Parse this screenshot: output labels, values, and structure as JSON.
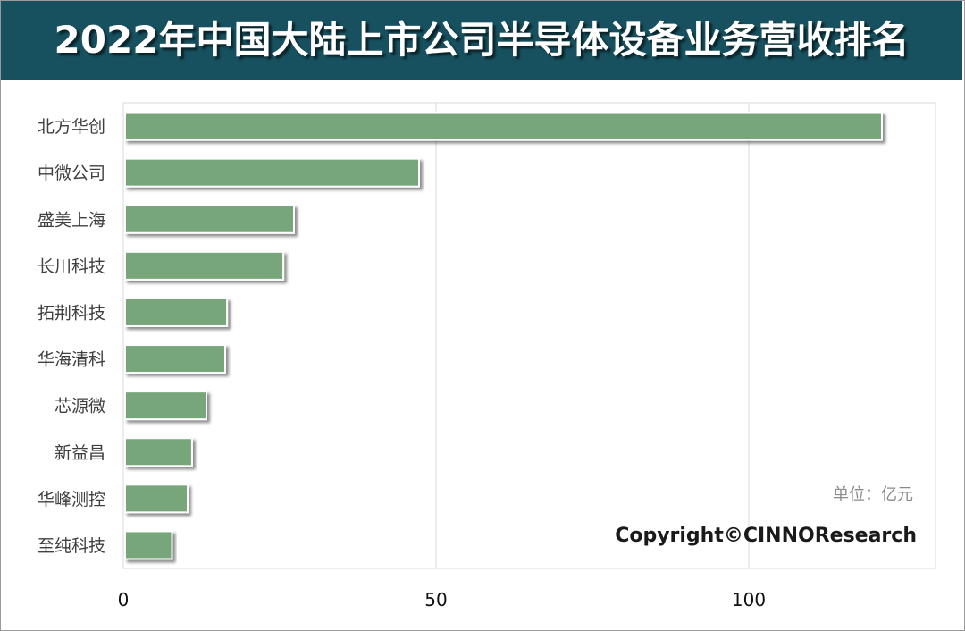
{
  "title": "2022年中国大陆上市公司半导体设备业务营收排名",
  "unit": "单位：亿元",
  "copyright": "Copyright©CINNOResearch",
  "colors": {
    "title_bg": "#17505e",
    "bar": "#76a679",
    "grid": "#d9d9d9"
  },
  "chart_data": {
    "type": "bar",
    "orientation": "horizontal",
    "categories": [
      "北方华创",
      "中微公司",
      "盛美上海",
      "长川科技",
      "拓荆科技",
      "华海清科",
      "芯源微",
      "新益昌",
      "华峰测控",
      "至纯科技"
    ],
    "values": [
      121,
      47,
      27,
      25.3,
      16.3,
      16,
      13,
      10.7,
      10,
      7.5
    ],
    "xticks": [
      0,
      50,
      100
    ],
    "xlim": [
      0,
      130
    ],
    "grid": true,
    "legend": "none"
  }
}
